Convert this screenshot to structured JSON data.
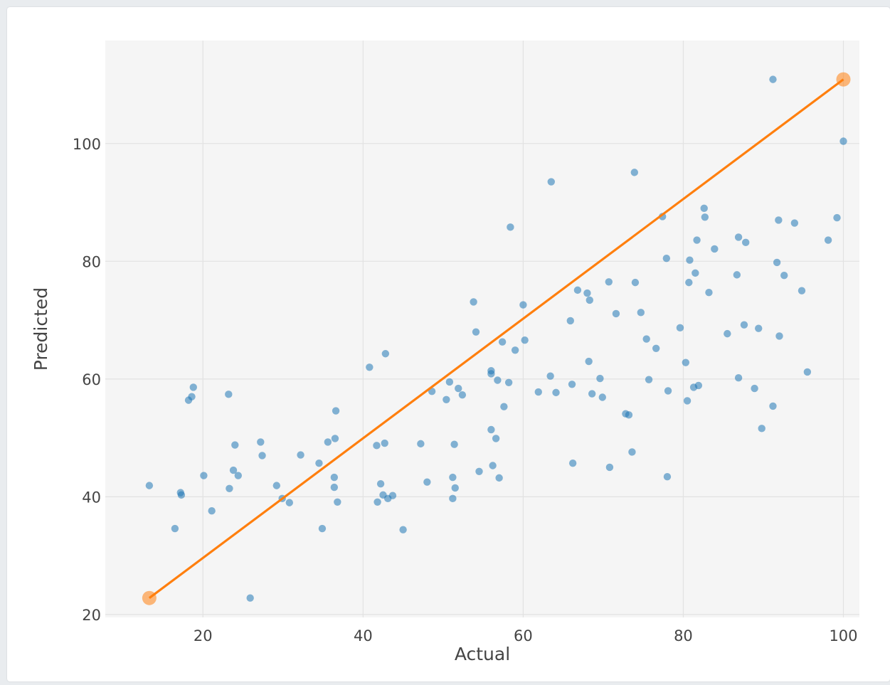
{
  "chart_data": {
    "type": "scatter",
    "xlabel": "Actual",
    "ylabel": "Predicted",
    "xlim": [
      7.8,
      102
    ],
    "ylim": [
      19.5,
      117.5
    ],
    "xticks": [
      20,
      40,
      60,
      80,
      100
    ],
    "yticks": [
      20,
      40,
      60,
      80,
      100
    ],
    "grid": true,
    "colors": {
      "points": "#1f77b4",
      "line": "#ff7f0e",
      "plot_bg": "#f5f5f5",
      "grid": "#e2e2e2",
      "text": "#444444"
    },
    "points": [
      [
        13.3,
        41.9
      ],
      [
        16.5,
        34.6
      ],
      [
        17.2,
        40.7
      ],
      [
        17.3,
        40.3
      ],
      [
        18.2,
        56.4
      ],
      [
        18.6,
        57.0
      ],
      [
        18.8,
        58.6
      ],
      [
        20.1,
        43.6
      ],
      [
        21.1,
        37.6
      ],
      [
        23.2,
        57.4
      ],
      [
        23.3,
        41.4
      ],
      [
        23.8,
        44.5
      ],
      [
        24.0,
        48.8
      ],
      [
        24.4,
        43.6
      ],
      [
        25.9,
        22.8
      ],
      [
        27.2,
        49.3
      ],
      [
        27.4,
        47.0
      ],
      [
        29.2,
        41.9
      ],
      [
        29.9,
        39.7
      ],
      [
        30.8,
        39.0
      ],
      [
        32.2,
        47.1
      ],
      [
        34.5,
        45.7
      ],
      [
        34.9,
        34.6
      ],
      [
        35.6,
        49.3
      ],
      [
        36.4,
        43.3
      ],
      [
        36.4,
        41.6
      ],
      [
        36.5,
        49.9
      ],
      [
        36.6,
        54.6
      ],
      [
        36.8,
        39.1
      ],
      [
        40.8,
        62.0
      ],
      [
        41.7,
        48.7
      ],
      [
        41.8,
        39.1
      ],
      [
        42.2,
        42.2
      ],
      [
        42.5,
        40.3
      ],
      [
        42.7,
        49.1
      ],
      [
        42.8,
        64.3
      ],
      [
        43.1,
        39.7
      ],
      [
        43.7,
        40.2
      ],
      [
        45.0,
        34.4
      ],
      [
        47.2,
        49.0
      ],
      [
        48.0,
        42.5
      ],
      [
        48.6,
        57.9
      ],
      [
        50.4,
        56.5
      ],
      [
        50.8,
        59.5
      ],
      [
        51.2,
        43.3
      ],
      [
        51.2,
        39.7
      ],
      [
        51.4,
        48.9
      ],
      [
        51.5,
        41.5
      ],
      [
        51.9,
        58.4
      ],
      [
        52.4,
        57.3
      ],
      [
        53.8,
        73.1
      ],
      [
        54.1,
        68.0
      ],
      [
        54.5,
        44.3
      ],
      [
        56.0,
        51.4
      ],
      [
        56.0,
        60.9
      ],
      [
        56.0,
        61.4
      ],
      [
        56.2,
        45.3
      ],
      [
        56.6,
        49.9
      ],
      [
        56.8,
        59.8
      ],
      [
        57.0,
        43.2
      ],
      [
        57.4,
        66.3
      ],
      [
        57.6,
        55.3
      ],
      [
        58.2,
        59.4
      ],
      [
        58.4,
        85.8
      ],
      [
        59.0,
        64.9
      ],
      [
        60.0,
        72.6
      ],
      [
        60.2,
        66.6
      ],
      [
        61.9,
        57.8
      ],
      [
        63.4,
        60.5
      ],
      [
        63.5,
        93.5
      ],
      [
        64.1,
        57.7
      ],
      [
        65.9,
        69.9
      ],
      [
        66.1,
        59.1
      ],
      [
        66.2,
        45.7
      ],
      [
        66.8,
        75.1
      ],
      [
        68.0,
        74.6
      ],
      [
        68.2,
        63.0
      ],
      [
        68.3,
        73.4
      ],
      [
        68.6,
        57.5
      ],
      [
        69.6,
        60.1
      ],
      [
        69.9,
        56.9
      ],
      [
        70.7,
        76.5
      ],
      [
        70.8,
        45.0
      ],
      [
        71.6,
        71.1
      ],
      [
        72.8,
        54.1
      ],
      [
        73.2,
        53.9
      ],
      [
        73.6,
        47.6
      ],
      [
        73.9,
        95.1
      ],
      [
        74.0,
        76.4
      ],
      [
        74.7,
        71.3
      ],
      [
        75.4,
        66.8
      ],
      [
        75.7,
        59.9
      ],
      [
        76.6,
        65.2
      ],
      [
        77.4,
        87.6
      ],
      [
        77.9,
        80.5
      ],
      [
        78.0,
        43.4
      ],
      [
        78.1,
        58.0
      ],
      [
        79.6,
        68.7
      ],
      [
        80.3,
        62.8
      ],
      [
        80.5,
        56.3
      ],
      [
        80.7,
        76.4
      ],
      [
        80.8,
        80.2
      ],
      [
        81.3,
        58.6
      ],
      [
        81.5,
        78.0
      ],
      [
        81.7,
        83.6
      ],
      [
        81.9,
        58.9
      ],
      [
        82.6,
        89.0
      ],
      [
        82.7,
        87.5
      ],
      [
        83.2,
        74.7
      ],
      [
        83.9,
        82.1
      ],
      [
        85.5,
        67.7
      ],
      [
        86.7,
        77.7
      ],
      [
        86.9,
        60.2
      ],
      [
        86.9,
        84.1
      ],
      [
        87.6,
        69.2
      ],
      [
        87.8,
        83.2
      ],
      [
        88.9,
        58.4
      ],
      [
        89.4,
        68.6
      ],
      [
        89.8,
        51.6
      ],
      [
        91.2,
        110.9
      ],
      [
        91.2,
        55.4
      ],
      [
        91.7,
        79.8
      ],
      [
        91.9,
        87.0
      ],
      [
        92.0,
        67.3
      ],
      [
        92.6,
        77.6
      ],
      [
        93.9,
        86.5
      ],
      [
        94.8,
        75.0
      ],
      [
        95.5,
        61.2
      ],
      [
        98.1,
        83.6
      ],
      [
        99.2,
        87.4
      ],
      [
        100.0,
        100.4
      ]
    ],
    "fit_line": [
      [
        13.3,
        22.8
      ],
      [
        100.0,
        110.9
      ]
    ]
  }
}
